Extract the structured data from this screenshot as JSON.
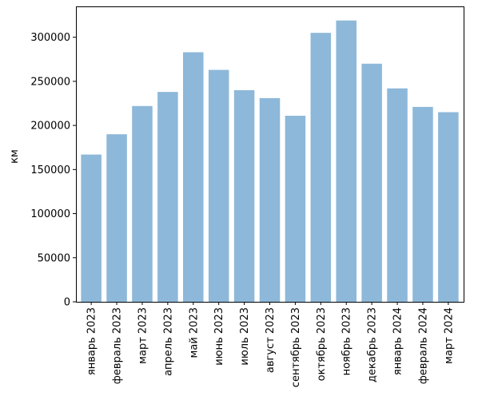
{
  "chart_data": {
    "type": "bar",
    "title": "",
    "xlabel": "",
    "ylabel": "км",
    "ylim": [
      0,
      335000
    ],
    "yticks": [
      0,
      50000,
      100000,
      150000,
      200000,
      250000,
      300000
    ],
    "grid": false,
    "legend": "none",
    "categories": [
      "январь 2023",
      "февраль 2023",
      "март 2023",
      "апрель 2023",
      "май 2023",
      "июнь 2023",
      "июль 2023",
      "август 2023",
      "сентябрь 2023",
      "октябрь 2023",
      "ноябрь 2023",
      "декабрь 2023",
      "январь 2024",
      "февраль 2024",
      "март 2024"
    ],
    "values": [
      167000,
      190000,
      222000,
      238000,
      283000,
      263000,
      240000,
      231000,
      211000,
      305000,
      319000,
      270000,
      242000,
      221000,
      215000
    ],
    "colors": {
      "bar": "#8db8d9",
      "axis": "#000000",
      "background": "#ffffff"
    }
  }
}
